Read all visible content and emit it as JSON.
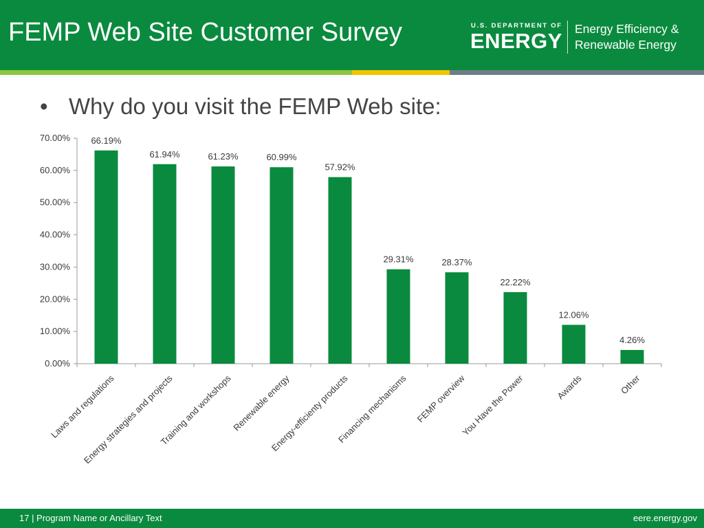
{
  "header": {
    "title": "FEMP Web Site Customer Survey",
    "logo_small": "U.S. DEPARTMENT OF",
    "logo_big": "ENERGY",
    "eere_line1": "Energy Efficiency &",
    "eere_line2": "Renewable Energy"
  },
  "colors": {
    "header_green": "#0a8a3e",
    "bar_green": "#0a8a3e",
    "stripe_green": "#8cc63f",
    "stripe_yellow": "#f2c500",
    "stripe_gray": "#6d7e86"
  },
  "bullet": {
    "marker": "•",
    "text": "Why do you visit the FEMP Web site:"
  },
  "chart_data": {
    "type": "bar",
    "categories": [
      "Laws and regulations",
      "Energy strategies and projects",
      "Training and workshops",
      "Renewable energy",
      "Energy-efficienty products",
      "Financing mechanisms",
      "FEMP overview",
      "You Have the Power",
      "Awards",
      "Other"
    ],
    "values": [
      66.19,
      61.94,
      61.23,
      60.99,
      57.92,
      29.31,
      28.37,
      22.22,
      12.06,
      4.26
    ],
    "value_labels": [
      "66.19%",
      "61.94%",
      "61.23%",
      "60.99%",
      "57.92%",
      "29.31%",
      "28.37%",
      "22.22%",
      "12.06%",
      "4.26%"
    ],
    "yticks": [
      "0.00%",
      "10.00%",
      "20.00%",
      "30.00%",
      "40.00%",
      "50.00%",
      "60.00%",
      "70.00%"
    ],
    "ylim": [
      0,
      70
    ],
    "title": "",
    "xlabel": "",
    "ylabel": "",
    "grid": false,
    "legend": "none"
  },
  "footer": {
    "left": "17 | Program Name or Ancillary Text",
    "right": "eere.energy.gov"
  }
}
